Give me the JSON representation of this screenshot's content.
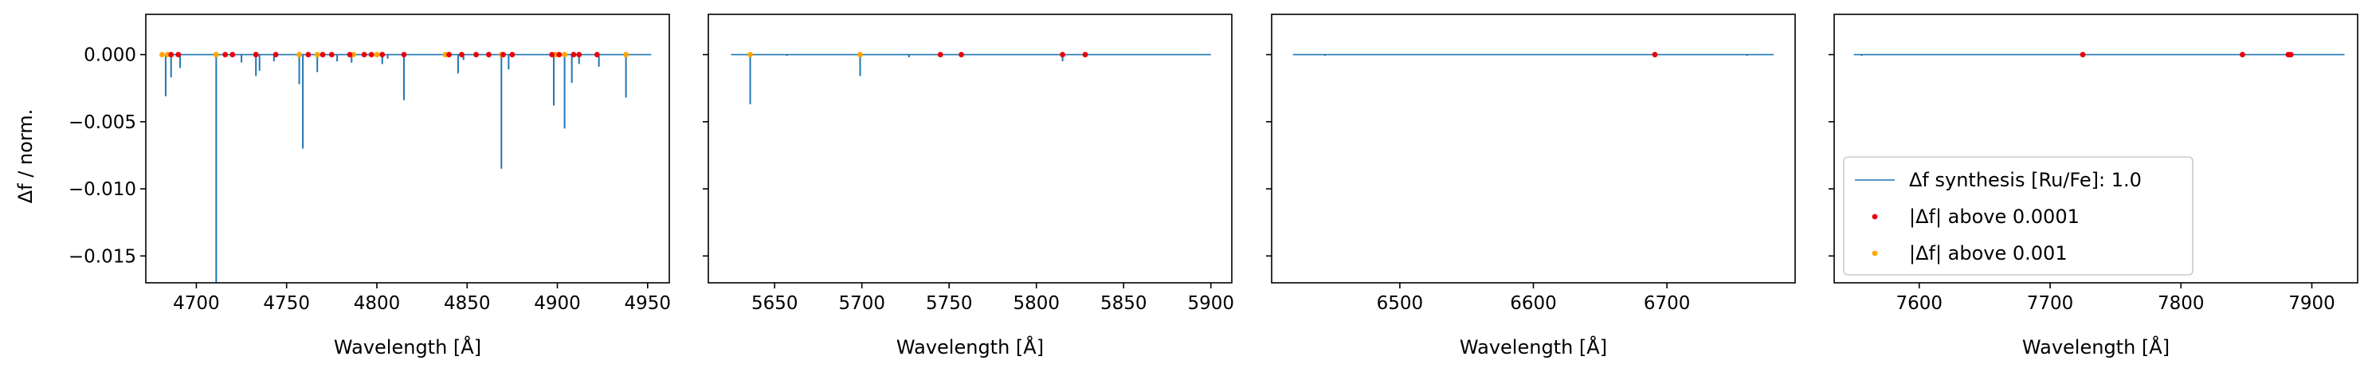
{
  "figure": {
    "ylabel": "Δf / norm.",
    "xlabel": "Wavelength [Å]"
  },
  "colors": {
    "synthesis_line": "#1f77b4",
    "above_1e4": "#e8000b",
    "above_1e3": "#ffa500"
  },
  "legend": {
    "placement": "lower-left (panel 4)",
    "entries": [
      {
        "label": "Δf synthesis [Ru/Fe]: 1.0",
        "marker": "line",
        "color": "#1f77b4"
      },
      {
        "label": "|Δf| above 0.0001",
        "marker": "dot",
        "color": "#e8000b"
      },
      {
        "label": "|Δf| above 0.001",
        "marker": "dot",
        "color": "#ffa500"
      }
    ]
  },
  "chart_data": [
    {
      "type": "line",
      "xlabel": "Wavelength [Å]",
      "ylabel": "Δf / norm.",
      "xlim": [
        4672,
        4962
      ],
      "ylim": [
        -0.017,
        0.003
      ],
      "xticks": [
        4700,
        4750,
        4800,
        4850,
        4900,
        4950
      ],
      "yticks": [
        0.0,
        -0.005,
        -0.01,
        -0.015
      ],
      "ytick_labels": [
        "0.000",
        "−0.005",
        "−0.010",
        "−0.015"
      ],
      "line_range": [
        4683,
        4952
      ],
      "lines": [
        {
          "x": 4683,
          "y": -0.0031
        },
        {
          "x": 4686,
          "y": -0.0017
        },
        {
          "x": 4691,
          "y": -0.001
        },
        {
          "x": 4711,
          "y": -0.017
        },
        {
          "x": 4725,
          "y": -0.0006
        },
        {
          "x": 4733,
          "y": -0.0016
        },
        {
          "x": 4735,
          "y": -0.0012
        },
        {
          "x": 4743,
          "y": -0.0005
        },
        {
          "x": 4757,
          "y": -0.0022
        },
        {
          "x": 4759,
          "y": -0.007
        },
        {
          "x": 4767,
          "y": -0.0013
        },
        {
          "x": 4778,
          "y": -0.0005
        },
        {
          "x": 4786,
          "y": -0.0006
        },
        {
          "x": 4803,
          "y": -0.0007
        },
        {
          "x": 4806,
          "y": -0.0003
        },
        {
          "x": 4815,
          "y": -0.0034
        },
        {
          "x": 4845,
          "y": -0.0014
        },
        {
          "x": 4848,
          "y": -0.0004
        },
        {
          "x": 4869,
          "y": -0.0085
        },
        {
          "x": 4873,
          "y": -0.0011
        },
        {
          "x": 4898,
          "y": -0.0038
        },
        {
          "x": 4904,
          "y": -0.0055
        },
        {
          "x": 4908,
          "y": -0.0021
        },
        {
          "x": 4912,
          "y": -0.0007
        },
        {
          "x": 4923,
          "y": -0.0009
        },
        {
          "x": 4938,
          "y": -0.0032
        }
      ],
      "points_above_1e4": [
        4686,
        4690,
        4716,
        4720,
        4733,
        4744,
        4762,
        4770,
        4775,
        4785,
        4793,
        4797,
        4803,
        4815,
        4840,
        4847,
        4855,
        4862,
        4870,
        4875,
        4897,
        4901,
        4909,
        4912,
        4922
      ],
      "points_above_1e3": [
        4681,
        4684,
        4711,
        4733,
        4757,
        4767,
        4787,
        4800,
        4838,
        4869,
        4899,
        4904,
        4938
      ]
    },
    {
      "type": "line",
      "xlabel": "Wavelength [Å]",
      "ylabel": "",
      "xlim": [
        5612,
        5912
      ],
      "ylim": [
        -0.017,
        0.003
      ],
      "xticks": [
        5650,
        5700,
        5750,
        5800,
        5850,
        5900
      ],
      "yticks": [
        0.0,
        -0.005,
        -0.01,
        -0.015
      ],
      "ytick_labels": [
        "",
        "",
        "",
        ""
      ],
      "line_range": [
        5625,
        5900
      ],
      "lines": [
        {
          "x": 5636,
          "y": -0.0037
        },
        {
          "x": 5699,
          "y": -0.0016
        },
        {
          "x": 5815,
          "y": -0.0005
        },
        {
          "x": 5727,
          "y": -0.0002
        },
        {
          "x": 5657,
          "y": -0.0001
        }
      ],
      "points_above_1e4": [
        5745,
        5757,
        5815,
        5828
      ],
      "points_above_1e3": [
        5636,
        5699
      ]
    },
    {
      "type": "line",
      "xlabel": "Wavelength [Å]",
      "ylabel": "",
      "xlim": [
        6404,
        6796
      ],
      "ylim": [
        -0.017,
        0.003
      ],
      "xticks": [
        6500,
        6600,
        6700
      ],
      "yticks": [
        0.0,
        -0.005,
        -0.01,
        -0.015
      ],
      "ytick_labels": [
        "",
        "",
        "",
        ""
      ],
      "line_range": [
        6420,
        6780
      ],
      "lines": [
        {
          "x": 6444,
          "y": -0.0001
        },
        {
          "x": 6760,
          "y": -0.0001
        }
      ],
      "points_above_1e4": [
        6691
      ],
      "points_above_1e3": []
    },
    {
      "type": "line",
      "xlabel": "Wavelength [Å]",
      "ylabel": "",
      "xlim": [
        7535,
        7935
      ],
      "ylim": [
        -0.017,
        0.003
      ],
      "xticks": [
        7600,
        7700,
        7800,
        7900
      ],
      "yticks": [
        0.0,
        -0.005,
        -0.01,
        -0.015
      ],
      "ytick_labels": [
        "",
        "",
        "",
        ""
      ],
      "line_range": [
        7550,
        7925
      ],
      "lines": [
        {
          "x": 7556,
          "y": -0.0001
        },
        {
          "x": 7883,
          "y": -0.0002
        }
      ],
      "points_above_1e4": [
        7725,
        7847,
        7882,
        7884
      ],
      "points_above_1e3": []
    }
  ]
}
